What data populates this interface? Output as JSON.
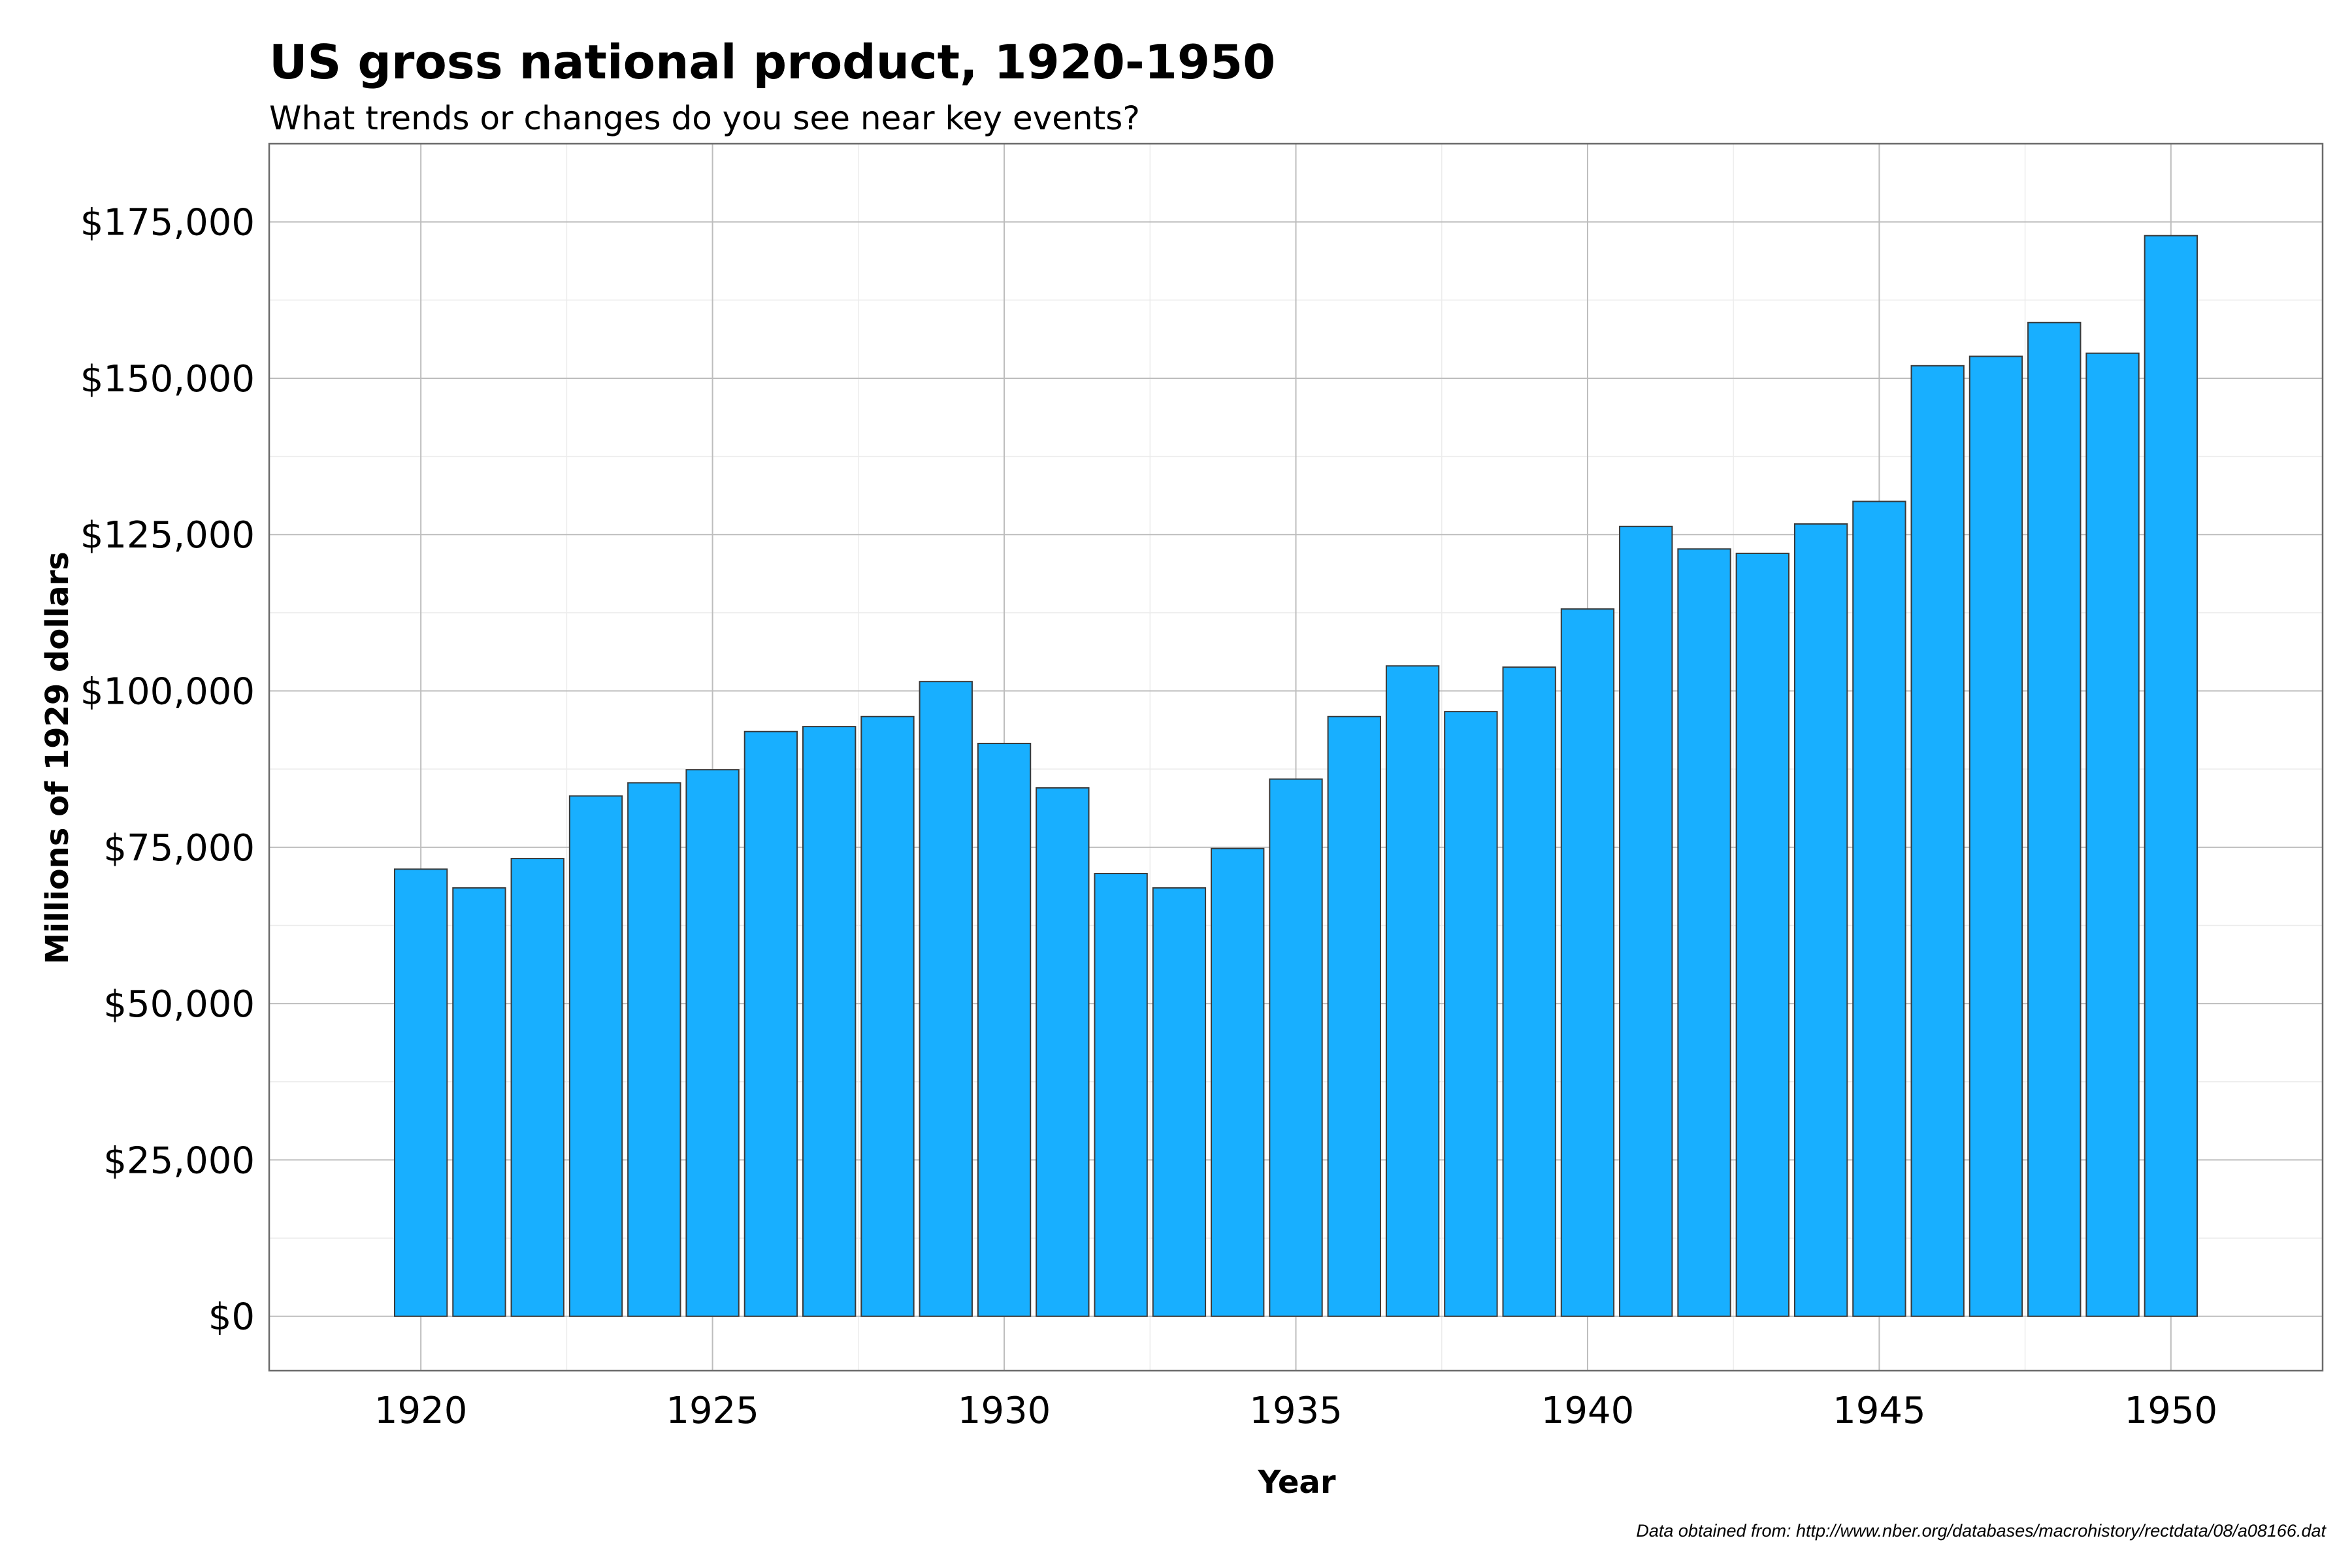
{
  "colors": {
    "bar_fill": "#18AFFF",
    "bar_stroke": "#3a3a3a"
  },
  "chart_data": {
    "type": "bar",
    "title": "US gross national product, 1920-1950",
    "subtitle": "What trends or changes do you see near key events?",
    "xlabel": "Year",
    "ylabel": "Millions of 1929 dollars",
    "caption": "Data obtained from: http://www.nber.org/databases/macrohistory/rectdata/08/a08166.dat",
    "x": [
      1920,
      1921,
      1922,
      1923,
      1924,
      1925,
      1926,
      1927,
      1928,
      1929,
      1930,
      1931,
      1932,
      1933,
      1934,
      1935,
      1936,
      1937,
      1938,
      1939,
      1940,
      1941,
      1942,
      1943,
      1944,
      1945,
      1946,
      1947,
      1948,
      1949,
      1950
    ],
    "values": [
      71500,
      68500,
      73200,
      83200,
      85300,
      87400,
      93500,
      94300,
      95900,
      101500,
      91600,
      84500,
      70800,
      68500,
      74800,
      85900,
      95900,
      104000,
      96700,
      103800,
      113100,
      126300,
      122700,
      122000,
      126700,
      130300,
      152000,
      153500,
      158900,
      154000,
      172800
    ],
    "x_ticks": [
      "1920",
      "1925",
      "1930",
      "1935",
      "1940",
      "1945",
      "1950"
    ],
    "y_ticks": [
      "$0",
      "$25,000",
      "$50,000",
      "$75,000",
      "$100,000",
      "$125,000",
      "$150,000",
      "$175,000"
    ],
    "xlim": [
      1917.4,
      1952.6
    ],
    "ylim": [
      -8700,
      187500
    ],
    "grid": true,
    "legend": "none"
  }
}
